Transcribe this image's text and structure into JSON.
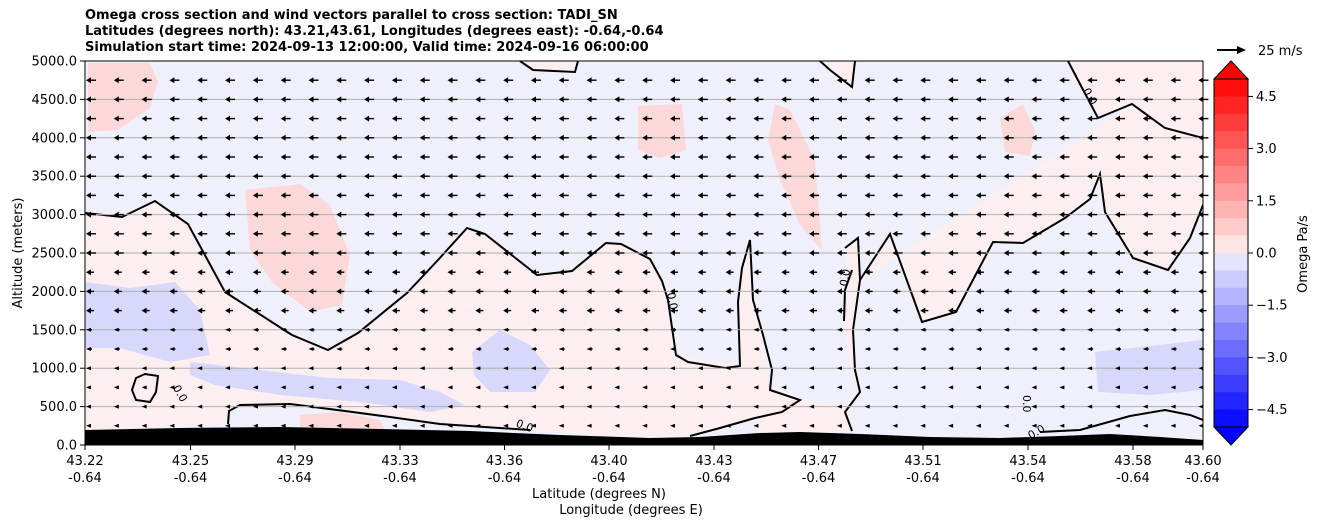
{
  "chart_data": {
    "type": "heatmap",
    "title_lines": [
      "Omega cross section and wind vectors parallel to cross section: TADI_SN",
      "Latitudes (degrees north): 43.21,43.61, Longitudes (degrees east): -0.64,-0.64",
      "Simulation start time: 2024-09-13 12:00:00, Valid time: 2024-09-16 06:00:00"
    ],
    "ylabel": "Altitude (meters)",
    "xlabel_lat": "Latitude (degrees N)",
    "xlabel_lon": "Longitude (degrees E)",
    "x_ticks": [
      {
        "lat": "43.22",
        "lon": "-0.64"
      },
      {
        "lat": "43.25",
        "lon": "-0.64"
      },
      {
        "lat": "43.29",
        "lon": "-0.64"
      },
      {
        "lat": "43.33",
        "lon": "-0.64"
      },
      {
        "lat": "43.36",
        "lon": "-0.64"
      },
      {
        "lat": "43.40",
        "lon": "-0.64"
      },
      {
        "lat": "43.43",
        "lon": "-0.64"
      },
      {
        "lat": "43.47",
        "lon": "-0.64"
      },
      {
        "lat": "43.51",
        "lon": "-0.64"
      },
      {
        "lat": "43.54",
        "lon": "-0.64"
      },
      {
        "lat": "43.58",
        "lon": "-0.64"
      },
      {
        "lat": "43.60",
        "lon": "-0.64"
      }
    ],
    "y_ticks": [
      "0.0",
      "500.0",
      "1000.0",
      "1500.0",
      "2000.0",
      "2500.0",
      "3000.0",
      "3500.0",
      "4000.0",
      "4500.0",
      "5000.0"
    ],
    "ylim": [
      0,
      5000
    ],
    "grid": "horizontal",
    "contour_label": "0.0",
    "contour_label_count": 7,
    "colorbar": {
      "label": "Omega Pa/s",
      "ticks": [
        "4.5",
        "3.0",
        "1.5",
        "0.0",
        "−1.5",
        "−3.0",
        "−4.5"
      ],
      "range": [
        -5,
        5
      ],
      "extend": "both",
      "positive_color": "#ff0000",
      "negative_color": "#0000ff"
    },
    "quiver_key": "25 m/s",
    "terrain_color": "#000000",
    "wind_direction": "northward to southward (arrows point left)"
  }
}
